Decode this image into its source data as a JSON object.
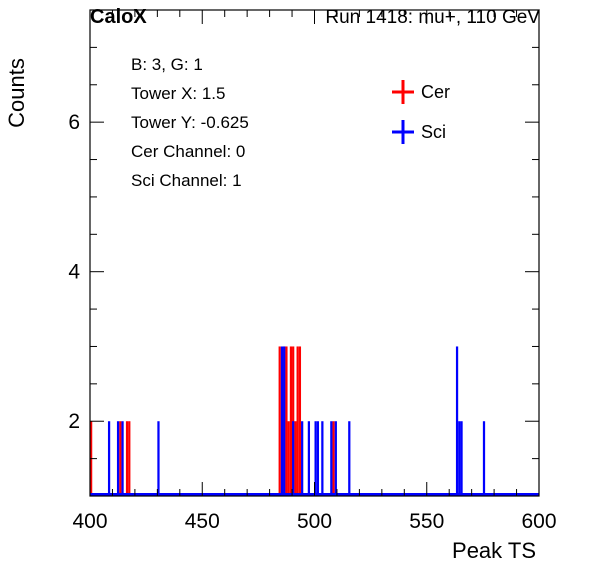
{
  "header": {
    "left": "CaloX",
    "right": "Run 1418: mu+, 110 GeV"
  },
  "info_box": {
    "lines": [
      "B: 3, G: 1",
      "Tower X: 1.5",
      "Tower Y: -0.625",
      "Cer Channel: 0",
      "Sci Channel: 1"
    ]
  },
  "legend": {
    "entries": [
      {
        "label": "Cer",
        "color": "#ff0000"
      },
      {
        "label": "Sci",
        "color": "#0000ff"
      }
    ]
  },
  "chart_data": {
    "type": "histogram",
    "xlabel": "Peak TS",
    "ylabel": "Counts",
    "xlim": [
      400,
      600
    ],
    "ylim": [
      1,
      7.5
    ],
    "x_ticks": [
      400,
      450,
      500,
      550,
      600
    ],
    "y_ticks": [
      2,
      4,
      6
    ],
    "grid": false,
    "legend_position": "top-right",
    "series": [
      {
        "name": "Cer",
        "color": "#ff0000",
        "bins": [
          {
            "x": 400,
            "count": 2
          },
          {
            "x": 413,
            "count": 2
          },
          {
            "x": 416,
            "count": 2
          },
          {
            "x": 417,
            "count": 2
          },
          {
            "x": 484,
            "count": 3
          },
          {
            "x": 486,
            "count": 3
          },
          {
            "x": 487,
            "count": 3
          },
          {
            "x": 488,
            "count": 2
          },
          {
            "x": 489,
            "count": 3
          },
          {
            "x": 490,
            "count": 3
          },
          {
            "x": 491,
            "count": 2
          },
          {
            "x": 492,
            "count": 3
          },
          {
            "x": 493,
            "count": 3
          },
          {
            "x": 508,
            "count": 2
          }
        ]
      },
      {
        "name": "Sci",
        "color": "#0000ff",
        "bins": [
          {
            "x": 408,
            "count": 2
          },
          {
            "x": 412,
            "count": 2
          },
          {
            "x": 414,
            "count": 2
          },
          {
            "x": 430,
            "count": 2
          },
          {
            "x": 485,
            "count": 3
          },
          {
            "x": 486,
            "count": 3
          },
          {
            "x": 490,
            "count": 2
          },
          {
            "x": 494,
            "count": 2
          },
          {
            "x": 497,
            "count": 2
          },
          {
            "x": 500,
            "count": 2
          },
          {
            "x": 501,
            "count": 2
          },
          {
            "x": 503,
            "count": 2
          },
          {
            "x": 507,
            "count": 2
          },
          {
            "x": 509,
            "count": 2
          },
          {
            "x": 515,
            "count": 2
          },
          {
            "x": 563,
            "count": 3
          },
          {
            "x": 564,
            "count": 2
          },
          {
            "x": 565,
            "count": 2
          },
          {
            "x": 575,
            "count": 2
          }
        ]
      }
    ]
  }
}
